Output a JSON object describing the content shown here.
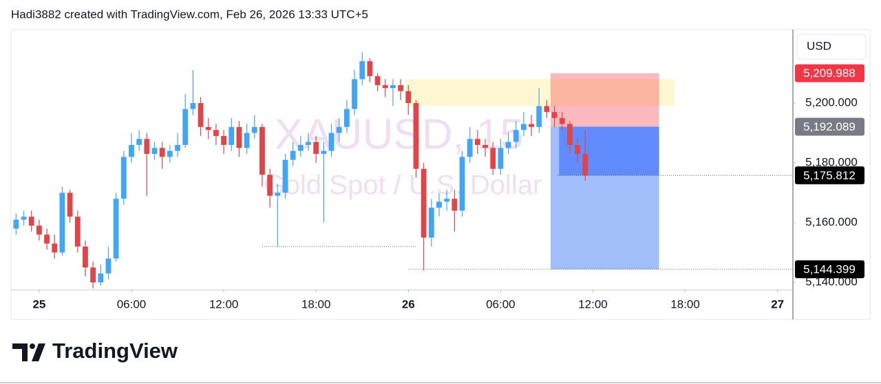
{
  "header": "Hadi3882 created with TradingView.com, Feb 26, 2026 13:33 UTC+5",
  "brand": "TradingView",
  "chart_data": {
    "type": "candlestick",
    "watermark_title": "XAUUSD, 15",
    "watermark_subtitle": "Gold Spot / U.S. Dollar",
    "currency": "USD",
    "up_color": "#42a5f5",
    "down_color": "#e0454a",
    "x": [
      -1.5,
      -1,
      -0.5,
      0,
      0.5,
      1,
      1.5,
      2,
      2.5,
      3,
      3.5,
      4,
      4.5,
      5,
      5.5,
      6,
      6.5,
      7,
      7.5,
      8,
      8.5,
      9,
      9.5,
      10,
      10.5,
      11,
      11.5,
      12,
      12.5,
      13,
      13.5,
      14,
      14.5,
      15,
      15.5,
      16,
      16.5,
      17,
      17.5,
      18,
      18.5,
      19,
      19.5,
      20,
      20.5,
      21,
      21.5,
      22,
      22.5,
      23,
      23.5,
      24,
      24.5,
      25,
      25.5,
      26,
      26.5,
      27,
      27.5,
      28,
      28.5,
      29,
      29.5,
      30,
      30.5,
      31,
      31.5,
      32,
      32.5,
      33,
      33.5,
      34,
      34.5,
      35,
      35.5
    ],
    "open": [
      5158,
      5161,
      5162,
      5159,
      5156,
      5153,
      5150,
      5170,
      5162,
      5152,
      5145,
      5140,
      5143,
      5148,
      5168,
      5182,
      5186,
      5188,
      5183,
      5185,
      5182,
      5184,
      5186,
      5198,
      5200,
      5192,
      5191,
      5189,
      5186,
      5192,
      5185,
      5190,
      5192,
      5176,
      5169,
      5170,
      5181,
      5184,
      5186,
      5187,
      5183,
      5184,
      5190,
      5192,
      5198,
      5208,
      5214,
      5209,
      5206,
      5205,
      5206,
      5204,
      5200,
      5178,
      5155,
      5165,
      5167,
      5168,
      5164,
      5182,
      5188,
      5186,
      5185,
      5178,
      5185,
      5187,
      5191,
      5193,
      5192,
      5199,
      5197,
      5195,
      5193,
      5186,
      5183
    ],
    "high": [
      5163,
      5164,
      5164,
      5161,
      5158,
      5156,
      5172,
      5171,
      5164,
      5154,
      5147,
      5146,
      5152,
      5170,
      5184,
      5190,
      5191,
      5190,
      5187,
      5187,
      5186,
      5190,
      5203,
      5211,
      5202,
      5195,
      5193,
      5191,
      5195,
      5194,
      5193,
      5196,
      5193,
      5178,
      5173,
      5183,
      5187,
      5189,
      5190,
      5189,
      5187,
      5193,
      5195,
      5201,
      5211,
      5217,
      5215,
      5210,
      5208,
      5208,
      5208,
      5206,
      5201,
      5180,
      5168,
      5170,
      5171,
      5171,
      5184,
      5192,
      5191,
      5188,
      5187,
      5188,
      5190,
      5194,
      5197,
      5196,
      5205,
      5201,
      5199,
      5197,
      5194,
      5188,
      5191
    ],
    "low": [
      5156,
      5159,
      5157,
      5154,
      5151,
      5148,
      5149,
      5160,
      5150,
      5142,
      5138,
      5139,
      5141,
      5147,
      5166,
      5180,
      5184,
      5169,
      5181,
      5178,
      5180,
      5182,
      5185,
      5196,
      5189,
      5188,
      5186,
      5183,
      5184,
      5182,
      5183,
      5188,
      5172,
      5165,
      5152,
      5168,
      5179,
      5182,
      5184,
      5180,
      5160,
      5182,
      5187,
      5190,
      5196,
      5206,
      5207,
      5204,
      5202,
      5199,
      5201,
      5196,
      5175,
      5144,
      5152,
      5162,
      5164,
      5157,
      5162,
      5180,
      5183,
      5182,
      5176,
      5176,
      5183,
      5185,
      5189,
      5189,
      5190,
      5195,
      5192,
      5191,
      5183,
      5180,
      5174
    ],
    "close": [
      5161,
      5162,
      5159,
      5156,
      5153,
      5150,
      5170,
      5162,
      5152,
      5145,
      5140,
      5143,
      5148,
      5168,
      5182,
      5186,
      5188,
      5183,
      5185,
      5182,
      5184,
      5186,
      5198,
      5200,
      5192,
      5191,
      5189,
      5186,
      5192,
      5185,
      5190,
      5192,
      5176,
      5169,
      5170,
      5181,
      5184,
      5186,
      5187,
      5183,
      5184,
      5190,
      5192,
      5198,
      5208,
      5214,
      5209,
      5206,
      5205,
      5206,
      5204,
      5200,
      5178,
      5155,
      5165,
      5167,
      5168,
      5164,
      5182,
      5188,
      5186,
      5185,
      5178,
      5185,
      5187,
      5191,
      5193,
      5192,
      5199,
      5197,
      5195,
      5193,
      5186,
      5183,
      5175.812
    ],
    "xlim": [
      -1.83,
      49
    ],
    "xticks": [
      {
        "value": 0,
        "label": "25"
      },
      {
        "value": 6,
        "label": "06:00"
      },
      {
        "value": 12,
        "label": "12:00"
      },
      {
        "value": 18,
        "label": "18:00"
      },
      {
        "value": 24,
        "label": "26"
      },
      {
        "value": 30,
        "label": "06:00"
      },
      {
        "value": 36,
        "label": "12:00"
      },
      {
        "value": 42,
        "label": "18:00"
      },
      {
        "value": 48,
        "label": "27"
      }
    ],
    "ylim": [
      5137.5,
      5224.6
    ],
    "yticks": [
      {
        "value": 5140,
        "label": "5,140.000"
      },
      {
        "value": 5160,
        "label": "5,160.000"
      },
      {
        "value": 5180,
        "label": "5,180.000"
      },
      {
        "value": 5200,
        "label": "5,200.000"
      }
    ],
    "zones": [
      {
        "x0": 23.85,
        "x1": 41.3,
        "y0": 5199,
        "y1": 5208,
        "color": "rgba(255,236,140,0.4)"
      },
      {
        "x0": 33.25,
        "x1": 40.3,
        "y0": 5192.089,
        "y1": 5209.988,
        "color": "rgba(242,54,69,0.35)"
      },
      {
        "x0": 33.25,
        "x1": 40.3,
        "y0": 5144.399,
        "y1": 5192.089,
        "color": "rgba(60,120,245,0.48)"
      },
      {
        "x0": 33.8,
        "x1": 40.3,
        "y0": 5175.812,
        "y1": 5192.089,
        "color": "rgba(41,98,255,0.55)"
      }
    ],
    "levels": [
      {
        "value": 5152,
        "x0": 14.5,
        "x1": 24.5
      },
      {
        "value": 5144.399,
        "x0": 24,
        "x1": 49
      },
      {
        "value": 5175.812,
        "x0": 33.7,
        "x1": 49
      }
    ],
    "price_badges": [
      {
        "value": 5209.988,
        "label": "5,209.988",
        "color": "#f23645"
      },
      {
        "value": 5192.089,
        "label": "5,192.089",
        "color": "#787b86"
      },
      {
        "value": 5175.812,
        "label": "5,175.812",
        "color": "#000000"
      },
      {
        "value": 5144.399,
        "label": "5,144.399",
        "color": "#000000"
      }
    ]
  }
}
